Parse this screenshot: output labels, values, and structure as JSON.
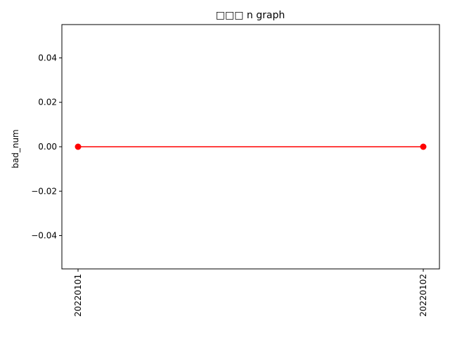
{
  "chart_data": {
    "type": "line",
    "title": "□□□ n graph",
    "xlabel": "",
    "ylabel": "bad_num",
    "categories": [
      "20220101",
      "20220102"
    ],
    "series": [
      {
        "values": [
          0.0,
          0.0
        ],
        "color": "#ff0000",
        "marker": "circle"
      }
    ],
    "ylim": [
      -0.055,
      0.055
    ],
    "yticks": [
      -0.04,
      -0.02,
      0.0,
      0.02,
      0.04
    ],
    "ytick_labels": [
      "−0.04",
      "−0.02",
      "0.00",
      "0.02",
      "0.04"
    ],
    "grid": false,
    "xtick_rotation": "vertical"
  }
}
